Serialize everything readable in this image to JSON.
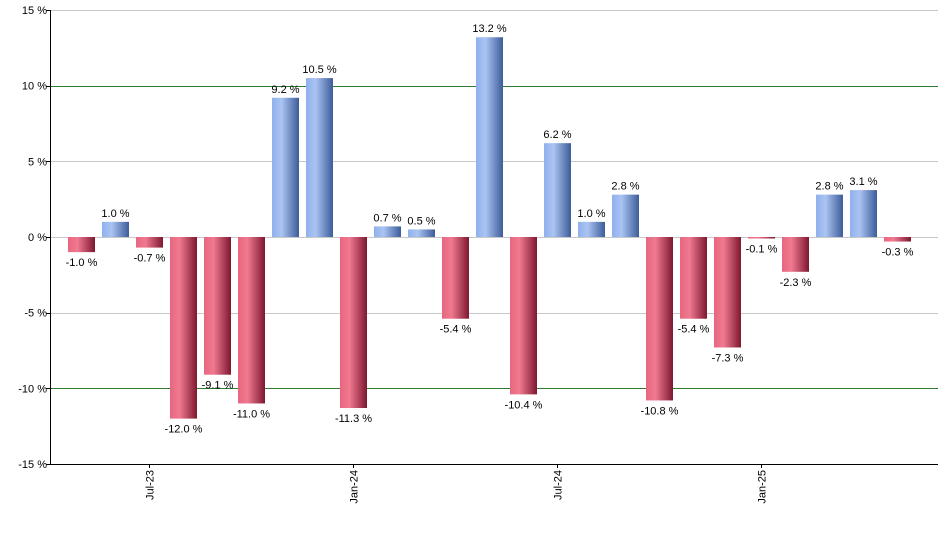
{
  "chart_data": {
    "type": "bar",
    "title": "",
    "xlabel": "",
    "ylabel": "",
    "ylim": [
      -15,
      15
    ],
    "y_ticks": [
      15,
      10,
      5,
      0,
      -5,
      -10,
      -15
    ],
    "y_tick_suffix": " %",
    "value_suffix": " %",
    "grid": true,
    "emphasized_gridlines": [
      10,
      -10
    ],
    "values": [
      -1.0,
      1.0,
      -0.7,
      -12.0,
      -9.1,
      -11.0,
      9.2,
      10.5,
      -11.3,
      0.7,
      0.5,
      -5.4,
      13.2,
      -10.4,
      6.2,
      1.0,
      2.8,
      -10.8,
      -5.4,
      -7.3,
      -0.1,
      -2.3,
      2.8,
      3.1,
      -0.3
    ],
    "x_tick_labels": [
      {
        "label": "Jul-23",
        "at_index": 2
      },
      {
        "label": "Jan-24",
        "at_index": 8
      },
      {
        "label": "Jul-24",
        "at_index": 14
      },
      {
        "label": "Jan-25",
        "at_index": 20
      }
    ],
    "colors": {
      "positive": "#6f94d8",
      "negative": "#c9304e",
      "grid": "#c8c8c8",
      "emphasized_grid": "#2e7d32",
      "axis": "#000000"
    }
  }
}
